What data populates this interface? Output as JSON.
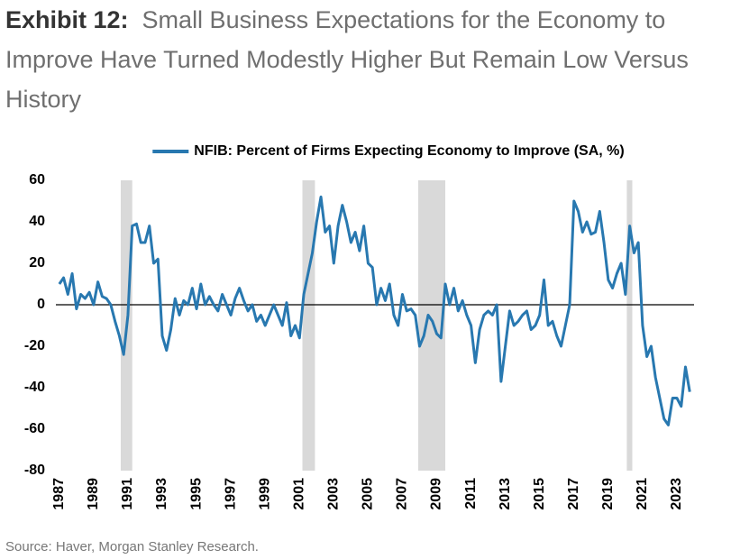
{
  "chart_data": {
    "type": "line",
    "exhibit": "Exhibit 12:",
    "title": "Small Business Expectations for the Economy to Improve Have Turned Modestly Higher But Remain Low Versus History",
    "source": "Source: Haver, Morgan Stanley Research.",
    "xlim": [
      1986.8,
      2024.0
    ],
    "ylim": [
      -80,
      60
    ],
    "xticks": [
      1987,
      1989,
      1991,
      1993,
      1995,
      1997,
      1999,
      2001,
      2003,
      2005,
      2007,
      2009,
      2011,
      2013,
      2015,
      2017,
      2019,
      2021,
      2023
    ],
    "yticks": [
      -80,
      -60,
      -40,
      -20,
      0,
      20,
      40,
      60
    ],
    "legend": "top",
    "recessions": [
      [
        1990.58,
        1991.25
      ],
      [
        2001.17,
        2001.9
      ],
      [
        2007.92,
        2009.5
      ],
      [
        2020.08,
        2020.4
      ]
    ],
    "recession_color": "#d9d9d9",
    "x": [
      1987,
      1987.25,
      1987.5,
      1987.75,
      1988,
      1988.25,
      1988.5,
      1988.75,
      1989,
      1989.25,
      1989.5,
      1989.75,
      1990,
      1990.25,
      1990.5,
      1990.75,
      1991,
      1991.25,
      1991.5,
      1991.75,
      1992,
      1992.25,
      1992.5,
      1992.75,
      1993,
      1993.25,
      1993.5,
      1993.75,
      1994,
      1994.25,
      1994.5,
      1994.75,
      1995,
      1995.25,
      1995.5,
      1995.75,
      1996,
      1996.25,
      1996.5,
      1996.75,
      1997,
      1997.25,
      1997.5,
      1997.75,
      1998,
      1998.25,
      1998.5,
      1998.75,
      1999,
      1999.25,
      1999.5,
      1999.75,
      2000,
      2000.25,
      2000.5,
      2000.75,
      2001,
      2001.25,
      2001.5,
      2001.75,
      2002,
      2002.25,
      2002.5,
      2002.75,
      2003,
      2003.25,
      2003.5,
      2003.75,
      2004,
      2004.25,
      2004.5,
      2004.75,
      2005,
      2005.25,
      2005.5,
      2005.75,
      2006,
      2006.25,
      2006.5,
      2006.75,
      2007,
      2007.25,
      2007.5,
      2007.75,
      2008,
      2008.25,
      2008.5,
      2008.75,
      2009,
      2009.25,
      2009.5,
      2009.75,
      2010,
      2010.25,
      2010.5,
      2010.75,
      2011,
      2011.25,
      2011.5,
      2011.75,
      2012,
      2012.25,
      2012.5,
      2012.75,
      2013,
      2013.25,
      2013.5,
      2013.75,
      2014,
      2014.25,
      2014.5,
      2014.75,
      2015,
      2015.25,
      2015.5,
      2015.75,
      2016,
      2016.25,
      2016.5,
      2016.75,
      2017,
      2017.25,
      2017.5,
      2017.75,
      2018,
      2018.25,
      2018.5,
      2018.75,
      2019,
      2019.25,
      2019.5,
      2019.75,
      2020,
      2020.25,
      2020.5,
      2020.75,
      2021,
      2021.25,
      2021.5,
      2021.75,
      2022,
      2022.25,
      2022.5,
      2022.75,
      2023,
      2023.25,
      2023.5,
      2023.75
    ],
    "series": [
      {
        "name": "NFIB: Percent of Firms Expecting Economy to Improve (SA, %)",
        "color": "#2878b0",
        "values": [
          10,
          13,
          5,
          15,
          -2,
          5,
          3,
          6,
          0,
          11,
          4,
          3,
          0,
          -8,
          -15,
          -24,
          -5,
          38,
          39,
          30,
          30,
          38,
          20,
          22,
          -15,
          -22,
          -12,
          3,
          -5,
          2,
          0,
          8,
          -2,
          10,
          0,
          4,
          0,
          -3,
          5,
          0,
          -5,
          3,
          8,
          2,
          -3,
          0,
          -8,
          -5,
          -10,
          -5,
          0,
          -5,
          -10,
          1,
          -15,
          -10,
          -16,
          5,
          15,
          25,
          40,
          52,
          35,
          38,
          20,
          38,
          48,
          40,
          30,
          35,
          26,
          38,
          20,
          18,
          0,
          8,
          2,
          10,
          -5,
          -10,
          5,
          -3,
          -2,
          -5,
          -20,
          -15,
          -5,
          -8,
          -14,
          -16,
          10,
          0,
          8,
          -3,
          2,
          -5,
          -10,
          -28,
          -12,
          -5,
          -3,
          -5,
          0,
          -37,
          -20,
          -3,
          -10,
          -8,
          -5,
          -3,
          -12,
          -10,
          -5,
          12,
          -10,
          -8,
          -15,
          -20,
          -10,
          0,
          50,
          45,
          35,
          40,
          34,
          35,
          45,
          30,
          12,
          8,
          15,
          20,
          5,
          38,
          25,
          30,
          -10,
          -25,
          -20,
          -35,
          -45,
          -55,
          -58,
          -45,
          -45,
          -49,
          -30,
          -42
        ]
      }
    ]
  }
}
